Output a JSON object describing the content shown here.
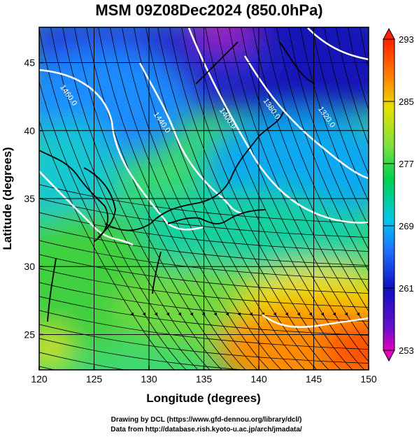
{
  "chart_data": {
    "type": "heatmap",
    "title": "MSM 09Z08Dec2024 (850.0hPa)",
    "xlabel": "Longitude (degrees)",
    "ylabel": "Latitude  (degrees)",
    "xlim": [
      120,
      150
    ],
    "ylim": [
      22.4,
      47.6
    ],
    "x_ticks": [
      120,
      125,
      130,
      135,
      140,
      145,
      150
    ],
    "y_ticks": [
      25,
      30,
      35,
      40,
      45
    ],
    "grid": true,
    "colorbar": {
      "min": 253,
      "max": 293,
      "ticks": [
        253,
        261,
        269,
        277,
        285,
        293
      ],
      "colors": [
        "#e000c0",
        "#1010c0",
        "#1e90ff",
        "#00d8d8",
        "#00d050",
        "#80e040",
        "#e8e000",
        "#ff8000",
        "#ff2000"
      ]
    },
    "contours": [
      {
        "label": "1460.0",
        "value": 1460,
        "lon": 122.5,
        "lat": 42.5
      },
      {
        "label": "1440.0",
        "value": 1440,
        "lon": 131.0,
        "lat": 40.5
      },
      {
        "label": "1400.0",
        "value": 1400,
        "lon": 137.0,
        "lat": 40.8
      },
      {
        "label": "1380.0",
        "value": 1380,
        "lon": 141.0,
        "lat": 41.5
      },
      {
        "label": "1320.0",
        "value": 1320,
        "lon": 146.0,
        "lat": 40.9
      }
    ],
    "credits": [
      "Drawing by DCL (https://www.gfd-dennou.org/library/dcl/)",
      "Data from http://database.rish.kyoto-u.ac.jp/arch/jmadata/"
    ]
  }
}
